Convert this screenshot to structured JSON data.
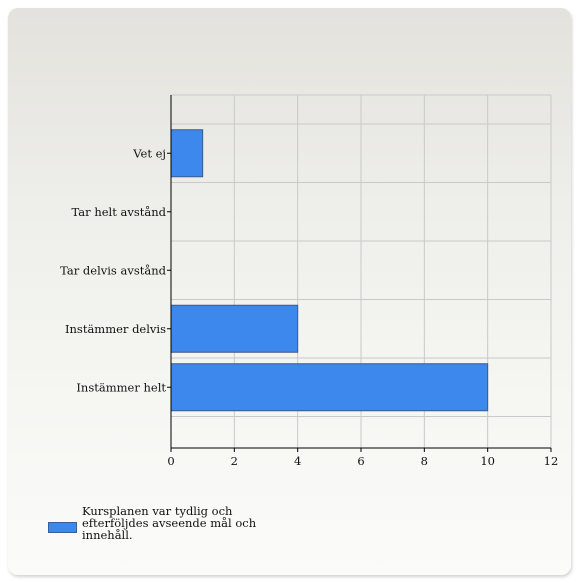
{
  "chart_data": {
    "type": "bar",
    "orientation": "horizontal",
    "categories": [
      "Vet ej",
      "Tar helt avstånd",
      "Tar delvis avstånd",
      "Instämmer delvis",
      "Instämmer helt"
    ],
    "series": [
      {
        "name": "Kursplanen var tydlig och efterföljdes avseende mål och innehåll.",
        "values": [
          1,
          0,
          0,
          4,
          10
        ],
        "color": "#3d88ec"
      }
    ],
    "xlim": [
      0,
      12
    ],
    "xticks": [
      "0",
      "2",
      "4",
      "6",
      "8",
      "10",
      "12"
    ],
    "grid": true,
    "legend_position": "bottom-left"
  }
}
